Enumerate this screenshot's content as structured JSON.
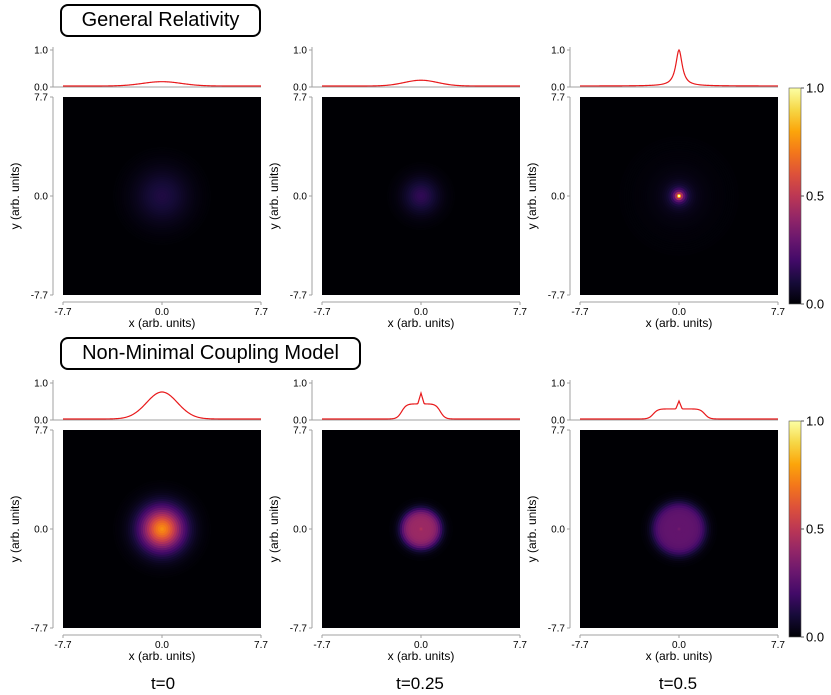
{
  "panel_titles": [
    "General Relativity",
    "Non-Minimal Coupling Model"
  ],
  "time_labels": [
    "t=0",
    "t=0.25",
    "t=0.5"
  ],
  "chart_data": [
    {
      "type": "heatmap",
      "row": 0,
      "col": 0,
      "model": "General Relativity",
      "time": "t=0",
      "xlabel": "x (arb. units)",
      "ylabel": "y (arb. units)",
      "xticks": [
        "-7.7",
        "0.0",
        "7.7"
      ],
      "yticks": [
        "-7.7",
        "0.0",
        "7.7"
      ],
      "xlim": [
        -7.7,
        7.7
      ],
      "ylim": [
        -7.7,
        7.7
      ],
      "profile": {
        "yticks": [
          "0.0",
          "1.0"
        ],
        "ylim": [
          0,
          1
        ],
        "line_color": "#e8191b",
        "profile_type": "gauss",
        "amp": 0.12,
        "sigma": 1.5
      },
      "density": {
        "profile_type": "gauss",
        "amp": 0.12,
        "sigma": 1.5
      }
    },
    {
      "type": "heatmap",
      "row": 0,
      "col": 1,
      "model": "General Relativity",
      "time": "t=0.25",
      "xlabel": "x (arb. units)",
      "ylabel": "y (arb. units)",
      "xticks": [
        "-7.7",
        "0.0",
        "7.7"
      ],
      "yticks": [
        "-7.7",
        "0.0",
        "7.7"
      ],
      "xlim": [
        -7.7,
        7.7
      ],
      "ylim": [
        -7.7,
        7.7
      ],
      "profile": {
        "yticks": [
          "0.0",
          "1.0"
        ],
        "ylim": [
          0,
          1
        ],
        "line_color": "#e8191b",
        "profile_type": "gauss",
        "amp": 0.16,
        "sigma": 1.3
      },
      "density": {
        "profile_type": "gauss",
        "amp": 0.16,
        "sigma": 1.0
      }
    },
    {
      "type": "heatmap",
      "row": 0,
      "col": 2,
      "model": "General Relativity",
      "time": "t=0.5",
      "xlabel": "x (arb. units)",
      "ylabel": "y (arb. units)",
      "xticks": [
        "-7.7",
        "0.0",
        "7.7"
      ],
      "yticks": [
        "-7.7",
        "0.0",
        "7.7"
      ],
      "xlim": [
        -7.7,
        7.7
      ],
      "ylim": [
        -7.7,
        7.7
      ],
      "profile": {
        "yticks": [
          "0.0",
          "1.0"
        ],
        "ylim": [
          0,
          1
        ],
        "line_color": "#e8191b",
        "profile_type": "lorentz",
        "amp": 1.0,
        "sigma": 0.3
      },
      "density": {
        "profile_type": "lorentz",
        "amp": 1.0,
        "sigma": 0.3
      }
    },
    {
      "type": "heatmap",
      "row": 1,
      "col": 0,
      "model": "Non-Minimal Coupling Model",
      "time": "t=0",
      "xlabel": "x (arb. units)",
      "ylabel": "y (arb. units)",
      "xticks": [
        "-7.7",
        "0.0",
        "7.7"
      ],
      "yticks": [
        "-7.7",
        "0.0",
        "7.7"
      ],
      "xlim": [
        -7.7,
        7.7
      ],
      "ylim": [
        -7.7,
        7.7
      ],
      "profile": {
        "yticks": [
          "0.0",
          "1.0"
        ],
        "ylim": [
          0,
          1
        ],
        "line_color": "#e8191b",
        "profile_type": "gauss",
        "amp": 0.75,
        "sigma": 1.2
      },
      "density": {
        "profile_type": "gauss",
        "amp": 0.75,
        "sigma": 1.2
      }
    },
    {
      "type": "heatmap",
      "row": 1,
      "col": 1,
      "model": "Non-Minimal Coupling Model",
      "time": "t=0.25",
      "xlabel": "x (arb. units)",
      "ylabel": "y (arb. units)",
      "xticks": [
        "-7.7",
        "0.0",
        "7.7"
      ],
      "yticks": [
        "-7.7",
        "0.0",
        "7.7"
      ],
      "xlim": [
        -7.7,
        7.7
      ],
      "ylim": [
        -7.7,
        7.7
      ],
      "profile": {
        "yticks": [
          "0.0",
          "1.0"
        ],
        "ylim": [
          0,
          1
        ],
        "line_color": "#e8191b",
        "profile_type": "plateau",
        "amp": 0.42,
        "halfwidth": 1.5,
        "edge": 0.4,
        "spike": 0.3
      },
      "density": {
        "profile_type": "plateau",
        "amp": 0.42,
        "halfwidth": 1.6,
        "edge": 0.45,
        "spike": 0.04
      }
    },
    {
      "type": "heatmap",
      "row": 1,
      "col": 2,
      "model": "Non-Minimal Coupling Model",
      "time": "t=0.5",
      "xlabel": "x (arb. units)",
      "ylabel": "y (arb. units)",
      "xticks": [
        "-7.7",
        "0.0",
        "7.7"
      ],
      "yticks": [
        "-7.7",
        "0.0",
        "7.7"
      ],
      "xlim": [
        -7.7,
        7.7
      ],
      "ylim": [
        -7.7,
        7.7
      ],
      "profile": {
        "yticks": [
          "0.0",
          "1.0"
        ],
        "ylim": [
          0,
          1
        ],
        "line_color": "#e8191b",
        "profile_type": "plateau",
        "amp": 0.28,
        "halfwidth": 2.0,
        "edge": 0.4,
        "spike": 0.22
      },
      "density": {
        "profile_type": "plateau",
        "amp": 0.28,
        "halfwidth": 2.1,
        "edge": 0.5,
        "spike": 0.03
      }
    }
  ],
  "colorbar": {
    "colormap": "inferno",
    "range": [
      0,
      1.0
    ],
    "ticks": [
      "0.0",
      "0.5",
      "1.0"
    ]
  }
}
